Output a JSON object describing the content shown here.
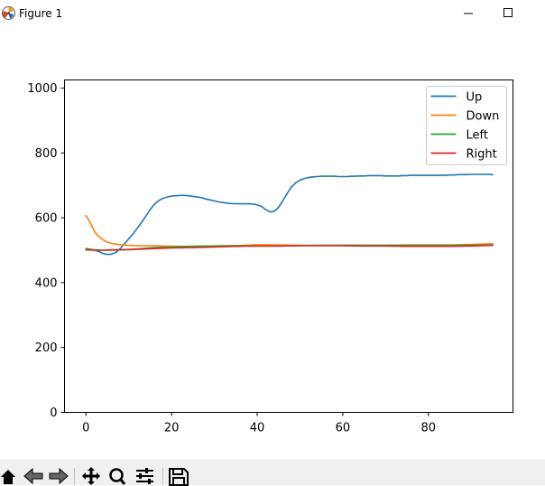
{
  "window": {
    "title": "Figure 1"
  },
  "toolbar": {
    "tools": [
      {
        "name": "home-icon"
      },
      {
        "name": "back-icon"
      },
      {
        "name": "forward-icon"
      },
      {
        "name": "pan-icon"
      },
      {
        "name": "zoom-icon"
      },
      {
        "name": "configure-subplots-icon"
      },
      {
        "name": "save-icon"
      }
    ]
  },
  "chart_data": {
    "type": "line",
    "title": "",
    "xlabel": "",
    "ylabel": "",
    "xlim": [
      -5,
      99.75
    ],
    "ylim": [
      0,
      1025
    ],
    "xticks": [
      0,
      20,
      40,
      60,
      80
    ],
    "yticks": [
      0,
      200,
      400,
      600,
      800,
      1000
    ],
    "grid": false,
    "legend": "top-right",
    "series": [
      {
        "name": "Up",
        "color": "#1f77b4",
        "x": [
          0,
          1,
          2,
          3,
          4,
          5,
          6,
          7,
          8,
          9,
          10,
          11,
          12,
          13,
          14,
          15,
          16,
          17,
          18,
          19,
          20,
          21,
          22,
          23,
          24,
          25,
          26,
          27,
          28,
          29,
          30,
          31,
          32,
          33,
          34,
          35,
          36,
          37,
          38,
          39,
          40,
          41,
          42,
          43,
          44,
          45,
          46,
          47,
          48,
          49,
          50,
          51,
          52,
          53,
          54,
          55,
          56,
          57,
          58,
          59,
          60,
          61,
          62,
          63,
          64,
          65,
          66,
          67,
          68,
          69,
          70,
          71,
          72,
          73,
          74,
          75,
          76,
          77,
          78,
          79,
          80,
          81,
          82,
          83,
          84,
          85,
          86,
          87,
          88,
          89,
          90,
          91,
          92,
          93,
          94,
          95
        ],
        "values": [
          505,
          503,
          500,
          496,
          490,
          487,
          488,
          493,
          505,
          520,
          535,
          550,
          568,
          586,
          605,
          625,
          642,
          653,
          660,
          664,
          667,
          668,
          669,
          669,
          668,
          666,
          664,
          662,
          658,
          655,
          652,
          649,
          647,
          645,
          644,
          643,
          643,
          643,
          643,
          642,
          640,
          635,
          625,
          618,
          620,
          632,
          653,
          675,
          695,
          708,
          716,
          721,
          724,
          726,
          727,
          728,
          728,
          728,
          728,
          727,
          727,
          727,
          728,
          728,
          729,
          729,
          730,
          730,
          730,
          730,
          729,
          729,
          729,
          729,
          730,
          730,
          731,
          731,
          731,
          731,
          731,
          731,
          731,
          731,
          731,
          732,
          732,
          733,
          733,
          733,
          734,
          734,
          734,
          734,
          734,
          733
        ]
      },
      {
        "name": "Down",
        "color": "#ff7f0e",
        "x": [
          0,
          1,
          2,
          3,
          4,
          5,
          6,
          7,
          8,
          9,
          10,
          12,
          14,
          16,
          18,
          20,
          25,
          30,
          35,
          40,
          45,
          50,
          55,
          60,
          65,
          70,
          75,
          80,
          85,
          90,
          95
        ],
        "values": [
          607,
          585,
          558,
          542,
          532,
          525,
          521,
          519,
          517,
          516,
          515,
          514,
          514,
          514,
          513,
          512,
          512,
          513,
          514,
          517,
          516,
          515,
          515,
          515,
          515,
          515,
          516,
          516,
          516,
          518,
          520
        ]
      },
      {
        "name": "Left",
        "color": "#2ca02c",
        "x": [
          0,
          2,
          4,
          6,
          8,
          10,
          12,
          14,
          16,
          18,
          20,
          25,
          30,
          35,
          40,
          45,
          50,
          55,
          60,
          65,
          70,
          75,
          80,
          85,
          90,
          95
        ],
        "values": [
          505,
          501,
          500,
          500,
          501,
          502,
          504,
          506,
          508,
          509,
          510,
          512,
          513,
          514,
          513,
          513,
          514,
          515,
          515,
          515,
          515,
          515,
          515,
          515,
          515,
          516
        ]
      },
      {
        "name": "Right",
        "color": "#d62728",
        "x": [
          0,
          2,
          4,
          6,
          8,
          10,
          12,
          14,
          16,
          18,
          20,
          25,
          30,
          35,
          40,
          45,
          50,
          55,
          60,
          65,
          70,
          75,
          80,
          85,
          90,
          95
        ],
        "values": [
          501,
          500,
          500,
          501,
          501,
          502,
          503,
          504,
          505,
          506,
          507,
          508,
          510,
          512,
          513,
          513,
          514,
          514,
          514,
          513,
          513,
          512,
          512,
          512,
          513,
          515
        ]
      }
    ]
  }
}
